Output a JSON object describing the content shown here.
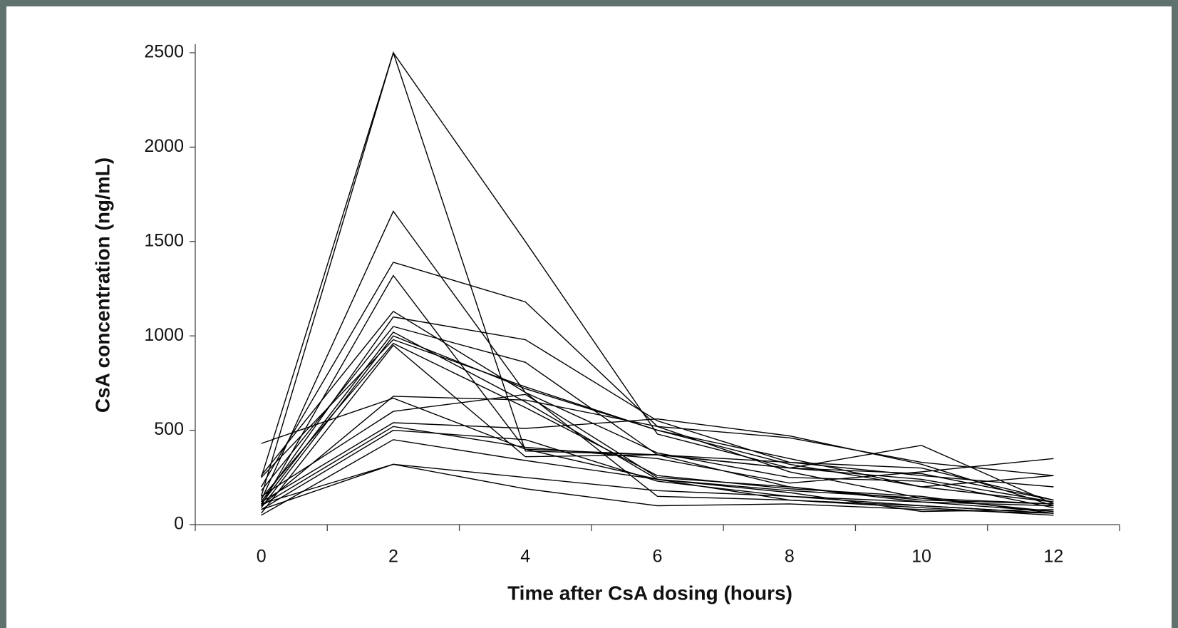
{
  "chart_data": {
    "type": "line",
    "x_label": "Time after CsA dosing (hours)",
    "y_label": "CsA concentration (ng/mL)",
    "categories": [
      "0",
      "2",
      "4",
      "6",
      "8",
      "10",
      "12"
    ],
    "ylim": [
      0,
      2500
    ],
    "yticks": [
      0,
      500,
      1000,
      1500,
      2000,
      2500
    ],
    "color": "#000000",
    "series": [
      {
        "values": [
          250,
          2500,
          1500,
          480,
          300,
          240,
          120
        ]
      },
      {
        "values": [
          150,
          2500,
          390,
          370,
          300,
          270,
          130
        ]
      },
      {
        "values": [
          130,
          1660,
          700,
          150,
          130,
          100,
          60
        ]
      },
      {
        "values": [
          200,
          1390,
          1180,
          520,
          460,
          330,
          260
        ]
      },
      {
        "values": [
          100,
          1320,
          400,
          370,
          300,
          420,
          110
        ]
      },
      {
        "values": [
          260,
          1130,
          700,
          380,
          250,
          230,
          90
        ]
      },
      {
        "values": [
          120,
          1100,
          980,
          550,
          330,
          260,
          200
        ]
      },
      {
        "values": [
          180,
          1050,
          860,
          370,
          330,
          300,
          130
        ]
      },
      {
        "values": [
          110,
          1020,
          650,
          240,
          180,
          140,
          70
        ]
      },
      {
        "values": [
          90,
          1000,
          720,
          500,
          320,
          200,
          260
        ]
      },
      {
        "values": [
          250,
          980,
          730,
          500,
          350,
          200,
          120
        ]
      },
      {
        "values": [
          140,
          960,
          620,
          260,
          190,
          150,
          60
        ]
      },
      {
        "values": [
          60,
          950,
          360,
          370,
          200,
          130,
          110
        ]
      },
      {
        "values": [
          430,
          670,
          400,
          240,
          170,
          70,
          80
        ]
      },
      {
        "values": [
          100,
          680,
          660,
          520,
          280,
          140,
          110
        ]
      },
      {
        "values": [
          150,
          600,
          690,
          250,
          200,
          120,
          70
        ]
      },
      {
        "values": [
          120,
          540,
          510,
          560,
          470,
          320,
          100
        ]
      },
      {
        "values": [
          100,
          520,
          410,
          350,
          220,
          280,
          350
        ]
      },
      {
        "values": [
          80,
          500,
          450,
          230,
          150,
          100,
          60
        ]
      },
      {
        "values": [
          50,
          450,
          340,
          240,
          130,
          90,
          50
        ]
      },
      {
        "values": [
          110,
          320,
          250,
          180,
          150,
          120,
          100
        ]
      },
      {
        "values": [
          80,
          320,
          190,
          100,
          110,
          80,
          60
        ]
      }
    ]
  }
}
